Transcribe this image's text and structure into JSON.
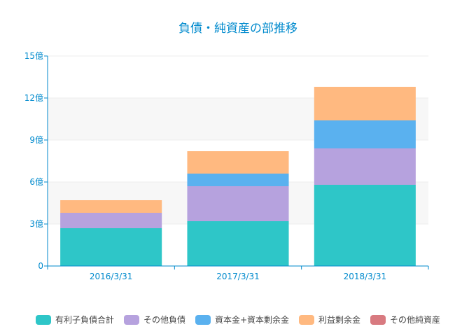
{
  "chart_data": {
    "type": "bar",
    "stacked": true,
    "title": "負債・純資産の部推移",
    "categories": [
      "2016/3/31",
      "2017/3/31",
      "2018/3/31"
    ],
    "ylim": [
      0,
      15
    ],
    "yticks": [
      0,
      3,
      6,
      9,
      12,
      15
    ],
    "ytick_labels": [
      "0",
      "3億",
      "6億",
      "9億",
      "12億",
      "15億"
    ],
    "grid": true,
    "legend_position": "bottom",
    "series": [
      {
        "name": "有利子負債合計",
        "color": "#2ec6c8",
        "values": [
          2.7,
          3.2,
          5.8
        ]
      },
      {
        "name": "その他負債",
        "color": "#b6a2de",
        "values": [
          1.1,
          2.5,
          2.6
        ]
      },
      {
        "name": "資本金+資本剰余金",
        "color": "#5ab1ef",
        "values": [
          0.0,
          0.9,
          2.0
        ]
      },
      {
        "name": "利益剰余金",
        "color": "#ffb980",
        "values": [
          0.9,
          1.6,
          2.4
        ]
      },
      {
        "name": "その他純資産",
        "color": "#d87a80",
        "values": [
          0,
          0,
          0
        ]
      }
    ],
    "colors": {
      "axis": "#008acd",
      "title": "#008acd",
      "grid": "#eeeeee",
      "band": "#f7f7f7"
    }
  }
}
